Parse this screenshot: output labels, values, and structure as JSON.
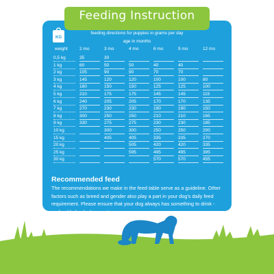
{
  "title": "Feeding Instruction",
  "icon_label": "KG",
  "subtitle": "feeding directions for puppies in grams per day",
  "age_label": "age in months",
  "table": {
    "columns": [
      "weight",
      "2 mo",
      "3 mo",
      "4 mo",
      "6 mo",
      "9 mo",
      "12 mo"
    ],
    "rows": [
      {
        "weight": "0,5 kg",
        "cells": [
          "35",
          "30",
          null,
          null,
          null,
          null
        ]
      },
      {
        "weight": "1 kg",
        "cells": [
          "60",
          "50",
          "50",
          "40",
          "40",
          null
        ]
      },
      {
        "weight": "2 kg",
        "cells": [
          "105",
          "90",
          "90",
          "70",
          "70",
          null
        ]
      },
      {
        "weight": "3 kg",
        "cells": [
          "145",
          "120",
          "120",
          "100",
          "100",
          "80"
        ]
      },
      {
        "weight": "4 kg",
        "cells": [
          "180",
          "150",
          "150",
          "125",
          "125",
          "100"
        ]
      },
      {
        "weight": "5 kg",
        "cells": [
          "210",
          "175",
          "175",
          "145",
          "145",
          "115"
        ]
      },
      {
        "weight": "6 kg",
        "cells": [
          "240",
          "205",
          "205",
          "170",
          "170",
          "135"
        ]
      },
      {
        "weight": "7 kg",
        "cells": [
          "270",
          "230",
          "230",
          "190",
          "190",
          "150"
        ]
      },
      {
        "weight": "8 kg",
        "cells": [
          "300",
          "250",
          "250",
          "210",
          "210",
          "165"
        ]
      },
      {
        "weight": "9 kg",
        "cells": [
          "330",
          "275",
          "275",
          "230",
          "230",
          "185"
        ]
      },
      {
        "weight": "10 kg",
        "cells": [
          null,
          "300",
          "300",
          "250",
          "250",
          "200"
        ]
      },
      {
        "weight": "15 kg",
        "cells": [
          null,
          "405",
          "405",
          "335",
          "335",
          "270"
        ]
      },
      {
        "weight": "20 kg",
        "cells": [
          null,
          null,
          "505",
          "420",
          "420",
          "335"
        ]
      },
      {
        "weight": "25 kg",
        "cells": [
          null,
          null,
          "595",
          "495",
          "495",
          "395"
        ]
      },
      {
        "weight": "30 kg",
        "cells": [
          null,
          null,
          null,
          "570",
          "570",
          "455"
        ]
      }
    ]
  },
  "footer": {
    "heading": "Recommended feed",
    "text": "The recommendations we make in the feed table serve as a guideline. Other factors such as breed and gender also play a part in your dog's daily feed requirement. Please ensure that your dog always has something to drink - preferably fresh clean water."
  }
}
